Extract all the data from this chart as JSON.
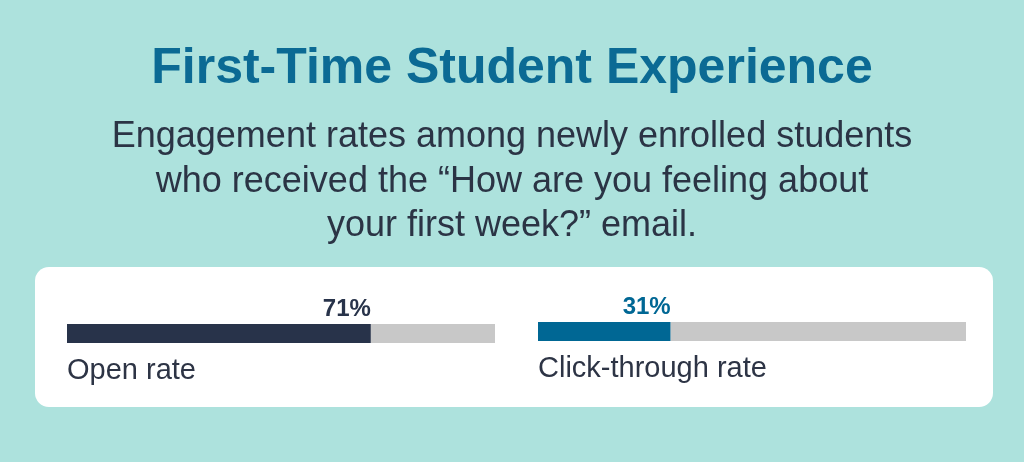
{
  "chart_data": [
    {
      "type": "bar",
      "orientation": "horizontal",
      "stacked": true,
      "title": "First-Time Student Experience",
      "subtitle": "Engagement rates among newly enrolled students\nwho received the “How are you feeling about\nyour first week?” email.",
      "categories": [
        "Open rate"
      ],
      "tick_labels": "y",
      "series": [
        {
          "color": "#28334a",
          "values": [
            71
          ],
          "value_labels": [
            "71%"
          ]
        },
        {
          "color": "#c8c8c8",
          "values": [
            29
          ]
        }
      ]
    },
    {
      "type": "bar",
      "orientation": "horizontal",
      "stacked": true,
      "categories": [
        "Click-through rate"
      ],
      "tick_labels": "y",
      "series": [
        {
          "color": "#006794",
          "values": [
            31
          ],
          "value_labels": [
            "31%"
          ]
        },
        {
          "color": "#c8c8c8",
          "values": [
            69
          ]
        }
      ]
    }
  ]
}
